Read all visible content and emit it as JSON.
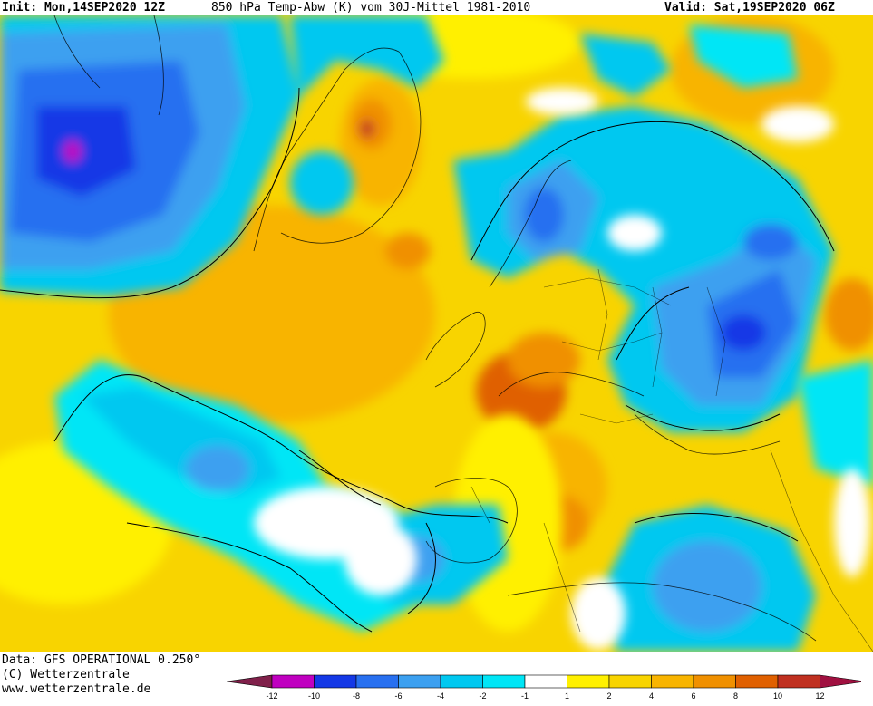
{
  "header": {
    "init": "Init: Mon,14SEP2020 12Z",
    "title": "850 hPa Temp-Abw (K) vom 30J-Mittel 1981-2010",
    "valid": "Valid: Sat,19SEP2020 06Z"
  },
  "footer": {
    "data_line": "Data: GFS OPERATIONAL 0.250°",
    "copyright_line": "(C) Wetterzentrale",
    "url_line": "www.wetterzentrale.de"
  },
  "legend": {
    "tick_labels": [
      "-12",
      "-10",
      "-8",
      "-6",
      "-4",
      "-2",
      "-1",
      "1",
      "2",
      "4",
      "6",
      "8",
      "10",
      "12"
    ],
    "colors": {
      "lt_m12": "#80204a",
      "m12_m10": "#c000c0",
      "m10_m8": "#1438e6",
      "m8_m6": "#2870f0",
      "m6_m4": "#3ca0f0",
      "m4_m2": "#00c8f0",
      "m2_m1": "#00e6f6",
      "m1_1": "#ffffff",
      "p1_2": "#fff000",
      "p2_4": "#f8d400",
      "p4_6": "#f8b400",
      "p6_8": "#f09000",
      "p8_10": "#e06000",
      "p10_12": "#c03020",
      "gt_12": "#a01040"
    }
  }
}
